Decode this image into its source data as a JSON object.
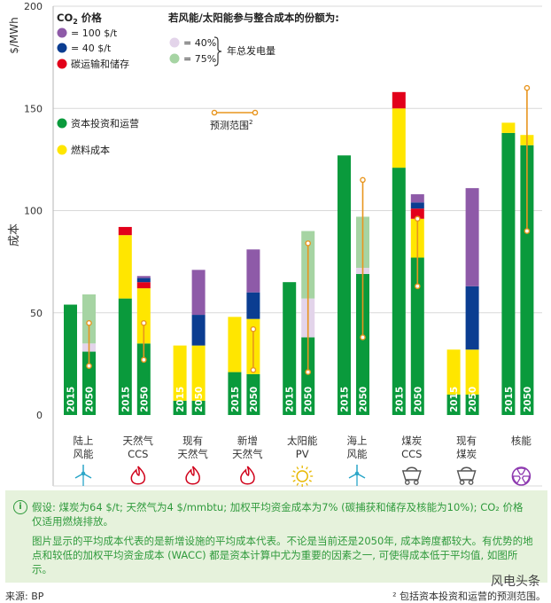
{
  "chart_data": {
    "type": "bar",
    "ylabel_unit": "$/MWh",
    "ylabel": "成本",
    "ylim": [
      0,
      200
    ],
    "yticks": [
      0,
      50,
      100,
      150,
      200
    ],
    "grid": true,
    "categories": [
      {
        "name": "陆上\n风能",
        "icon": "wind-turbine-icon"
      },
      {
        "name": "天然气\nCCS",
        "icon": "flame-icon"
      },
      {
        "name": "现有\n天然气",
        "icon": "flame-icon"
      },
      {
        "name": "新增\n天然气",
        "icon": "flame-icon"
      },
      {
        "name": "太阳能\nPV",
        "icon": "sun-icon"
      },
      {
        "name": "海上\n风能",
        "icon": "wind-turbine-icon"
      },
      {
        "name": "煤炭\nCCS",
        "icon": "coal-cart-icon"
      },
      {
        "name": "现有\n煤炭",
        "icon": "coal-cart-icon"
      },
      {
        "name": "核能",
        "icon": "nuclear-icon"
      }
    ],
    "years": [
      "2015",
      "2050"
    ],
    "series_colors": {
      "capital": "#0a9a3c",
      "fuel": "#ffe600",
      "transport": "#e2001a",
      "co2_40": "#0b3d91",
      "co2_100": "#8e5aa8",
      "int_40": "#e3d4ea",
      "int_75": "#a6d4a3",
      "range": "#e8951e"
    },
    "bars": [
      {
        "category": 0,
        "year": "2015",
        "capital": 54,
        "fuel": 0,
        "transport": 0,
        "co2_40": 0,
        "co2_100": 0,
        "int_40": 0,
        "int_75": 0
      },
      {
        "category": 0,
        "year": "2050",
        "capital": 31,
        "fuel": 0,
        "transport": 0,
        "co2_40": 0,
        "co2_100": 0,
        "int_40": 4,
        "int_75": 24,
        "range": [
          24,
          45
        ]
      },
      {
        "category": 1,
        "year": "2015",
        "capital": 57,
        "fuel": 31,
        "transport": 4,
        "co2_40": 0,
        "co2_100": 0
      },
      {
        "category": 1,
        "year": "2050",
        "capital": 35,
        "fuel": 27,
        "transport": 3,
        "co2_40": 2,
        "co2_100": 1,
        "range": [
          27,
          45
        ]
      },
      {
        "category": 2,
        "year": "2015",
        "capital": 7,
        "fuel": 27,
        "transport": 0,
        "co2_40": 0,
        "co2_100": 0
      },
      {
        "category": 2,
        "year": "2050",
        "capital": 7,
        "fuel": 27,
        "transport": 0,
        "co2_40": 15,
        "co2_100": 22
      },
      {
        "category": 3,
        "year": "2015",
        "capital": 21,
        "fuel": 27,
        "transport": 0,
        "co2_40": 0,
        "co2_100": 0
      },
      {
        "category": 3,
        "year": "2050",
        "capital": 20,
        "fuel": 27,
        "transport": 0,
        "co2_40": 13,
        "co2_100": 21,
        "range": [
          22,
          42
        ]
      },
      {
        "category": 4,
        "year": "2015",
        "capital": 65,
        "fuel": 0,
        "transport": 0,
        "co2_40": 0,
        "co2_100": 0
      },
      {
        "category": 4,
        "year": "2050",
        "capital": 38,
        "fuel": 0,
        "transport": 0,
        "co2_40": 0,
        "co2_100": 0,
        "int_40": 19,
        "int_75": 33,
        "range": [
          21,
          84
        ]
      },
      {
        "category": 5,
        "year": "2015",
        "capital": 127,
        "fuel": 0,
        "transport": 0,
        "co2_40": 0,
        "co2_100": 0
      },
      {
        "category": 5,
        "year": "2050",
        "capital": 69,
        "fuel": 0,
        "transport": 0,
        "co2_40": 0,
        "co2_100": 0,
        "int_40": 3,
        "int_75": 25,
        "range": [
          38,
          115
        ]
      },
      {
        "category": 6,
        "year": "2015",
        "capital": 121,
        "fuel": 29,
        "transport": 8,
        "co2_40": 0,
        "co2_100": 0
      },
      {
        "category": 6,
        "year": "2050",
        "capital": 77,
        "fuel": 19,
        "transport": 5,
        "co2_40": 3,
        "co2_100": 4,
        "range": [
          63,
          96
        ]
      },
      {
        "category": 7,
        "year": "2015",
        "capital": 10,
        "fuel": 22,
        "transport": 0,
        "co2_40": 0,
        "co2_100": 0
      },
      {
        "category": 7,
        "year": "2050",
        "capital": 10,
        "fuel": 22,
        "transport": 0,
        "co2_40": 31,
        "co2_100": 48
      },
      {
        "category": 8,
        "year": "2015",
        "capital": 138,
        "fuel": 5,
        "transport": 0,
        "co2_40": 0,
        "co2_100": 0
      },
      {
        "category": 8,
        "year": "2050",
        "capital": 132,
        "fuel": 5,
        "transport": 0,
        "co2_40": 0,
        "co2_100": 0,
        "range": [
          90,
          160
        ]
      }
    ],
    "legend": {
      "co2_title": "CO",
      "co2_sub": "2",
      "co2_suffix": " 价格",
      "co2_100_label": "= 100 $/t",
      "co2_40_label": "= 40 $/t",
      "transport_label": "碳运输和储存",
      "capital_label": "资本投资和运营",
      "fuel_label": "燃料成本",
      "integration_title": "若风能/太阳能参与整合成本的份额为:",
      "int_40_label": "= 40%",
      "int_75_label": "= 75%",
      "integration_bracket_label": "年总发电量",
      "range_label": "预测范围",
      "range_sup": "2"
    }
  },
  "note": {
    "line1": "假设: 煤炭为64 $/t; 天然气为4 $/mmbtu; 加权平均资金成本为7% (碳捕获和储存及核能为10%); CO₂ 价格",
    "line2": "仅适用燃烧排放。",
    "line3": "图片显示的平均成本代表的是新增设施的平均成本代表。不论是当前还是2050年, 成本跨度都较大。有优势的地",
    "line4": "点和较低的加权平均资金成本 (WACC) 都是资本计算中尤为重要的因素之一, 可使得成本低于平均值, 如图所",
    "line5": "示。"
  },
  "source": "来源: BP",
  "footnote": "² 包括资本投资和运营的预测范围。",
  "watermark": "风电头条"
}
